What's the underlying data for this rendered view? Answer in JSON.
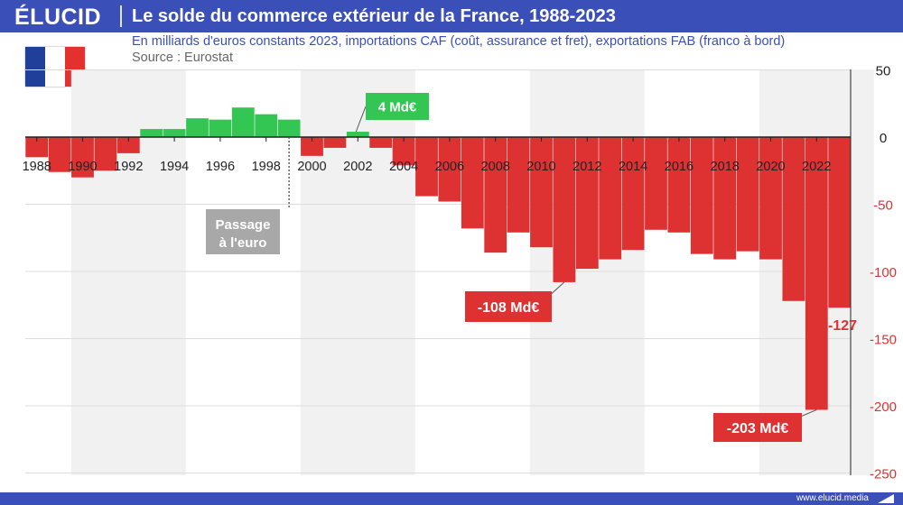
{
  "header": {
    "brand": "ÉLUCID",
    "title": "Le solde du commerce extérieur de la France, 1988-2023"
  },
  "subtitle": "En milliards d'euros constants 2023, importations CAF (coût, assurance et fret), exportations FAB (franco à bord)",
  "source": "Source : Eurostat",
  "footer": {
    "url": "www.elucid.media"
  },
  "flag": {
    "colors": [
      "#1f3f9a",
      "#ffffff",
      "#e2312e"
    ]
  },
  "colors": {
    "positive": "#33c653",
    "negative": "#de3131",
    "annotation_gray": "#a8a8a8",
    "brand": "#3b4fb8"
  },
  "chart_data": {
    "type": "bar",
    "title": "Le solde du commerce extérieur de la France, 1988-2023",
    "xlabel": "",
    "ylabel": "",
    "ylim": [
      -250,
      50
    ],
    "yticks": [
      50,
      0,
      -50,
      -100,
      -150,
      -200,
      -250
    ],
    "xtick_labels": [
      "1988",
      "1990",
      "1992",
      "1994",
      "1996",
      "1998",
      "2000",
      "2002",
      "2004",
      "2006",
      "2008",
      "2010",
      "2012",
      "2014",
      "2016",
      "2018",
      "2020",
      "2022"
    ],
    "categories": [
      "1988",
      "1989",
      "1990",
      "1991",
      "1992",
      "1993",
      "1994",
      "1995",
      "1996",
      "1997",
      "1998",
      "1999",
      "2000",
      "2001",
      "2002",
      "2003",
      "2004",
      "2005",
      "2006",
      "2007",
      "2008",
      "2009",
      "2010",
      "2011",
      "2012",
      "2013",
      "2014",
      "2015",
      "2016",
      "2017",
      "2018",
      "2019",
      "2020",
      "2021",
      "2022",
      "2023"
    ],
    "values": [
      -15,
      -26,
      -30,
      -25,
      -12,
      6,
      6,
      14,
      13,
      22,
      17,
      13,
      -14,
      -8,
      4,
      -8,
      -21,
      -44,
      -48,
      -68,
      -86,
      -71,
      -82,
      -108,
      -98,
      -91,
      -84,
      -69,
      -71,
      -87,
      -91,
      -85,
      -91,
      -122,
      -203,
      -127
    ],
    "grid": true,
    "annotations": {
      "euro": "Passage\nà l'euro",
      "max_2002": "4 Md€",
      "min_2011": "-108 Md€",
      "min_2022": "-203 Md€",
      "last_2023": "-127"
    }
  }
}
